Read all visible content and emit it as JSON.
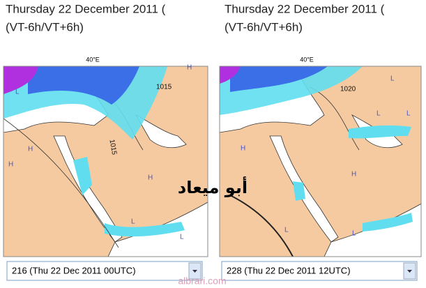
{
  "panels": [
    {
      "title": "Thursday 22 December 2011 (",
      "subtitle": "(VT-6h/VT+6h)",
      "longitude_label": "40°E",
      "isobar_labels": [
        "1015",
        "1015"
      ],
      "pressure_labels": [
        "H",
        "H",
        "H",
        "H",
        "L",
        "L",
        "L"
      ],
      "run_select": "216 (Thu 22 Dec 2011 00UTC)"
    },
    {
      "title": "Thursday 22 December 2011 (",
      "subtitle": "(VT-6h/VT+6h)",
      "longitude_label": "40°E",
      "isobar_labels": [
        "1020"
      ],
      "pressure_labels": [
        "L",
        "L",
        "H",
        "H",
        "L",
        "L",
        "L"
      ],
      "run_select": "228 (Thu 22 Dec 2011 12UTC)"
    }
  ],
  "watermark": "أبو ميعاد",
  "footer": "albrari.com"
}
